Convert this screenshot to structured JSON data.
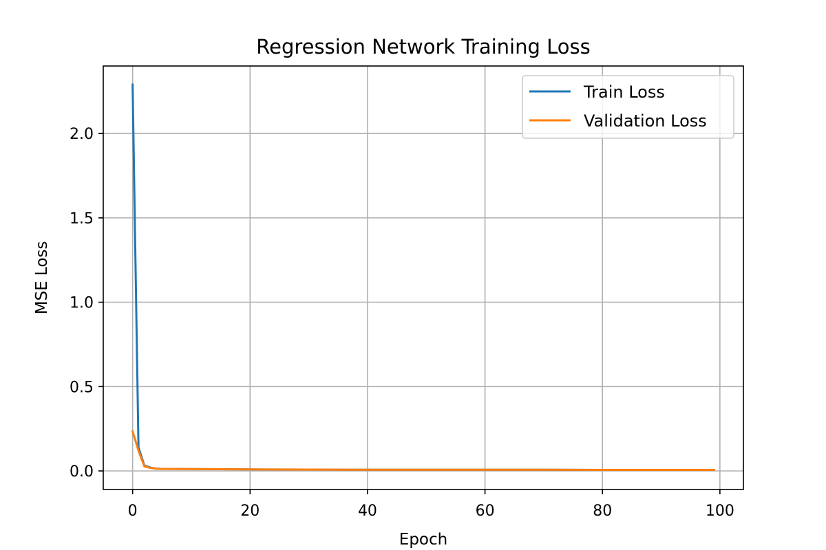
{
  "chart_data": {
    "type": "line",
    "title": "Regression Network Training Loss",
    "xlabel": "Epoch",
    "ylabel": "MSE Loss",
    "xlim": [
      -5,
      104
    ],
    "ylim": [
      -0.11,
      2.4
    ],
    "xticks": [
      0,
      20,
      40,
      60,
      80,
      100
    ],
    "yticks": [
      0.0,
      0.5,
      1.0,
      1.5,
      2.0
    ],
    "xtick_labels": [
      "0",
      "20",
      "40",
      "60",
      "80",
      "100"
    ],
    "ytick_labels": [
      "0.0",
      "0.5",
      "1.0",
      "1.5",
      "2.0"
    ],
    "grid": true,
    "legend_position": "top-right",
    "series": [
      {
        "name": "Train Loss",
        "color": "#1f77b4",
        "x": [
          0,
          1,
          2,
          3,
          4,
          5,
          10,
          20,
          30,
          40,
          50,
          60,
          70,
          80,
          90,
          99
        ],
        "y": [
          2.29,
          0.14,
          0.032,
          0.02,
          0.014,
          0.012,
          0.011,
          0.009,
          0.008,
          0.007,
          0.007,
          0.007,
          0.007,
          0.006,
          0.006,
          0.006
        ]
      },
      {
        "name": "Validation Loss",
        "color": "#ff7f0e",
        "x": [
          0,
          1,
          2,
          3,
          4,
          5,
          10,
          20,
          30,
          40,
          50,
          60,
          70,
          80,
          90,
          99
        ],
        "y": [
          0.235,
          0.12,
          0.027,
          0.018,
          0.013,
          0.012,
          0.011,
          0.009,
          0.008,
          0.007,
          0.007,
          0.007,
          0.007,
          0.006,
          0.006,
          0.006
        ]
      }
    ]
  }
}
